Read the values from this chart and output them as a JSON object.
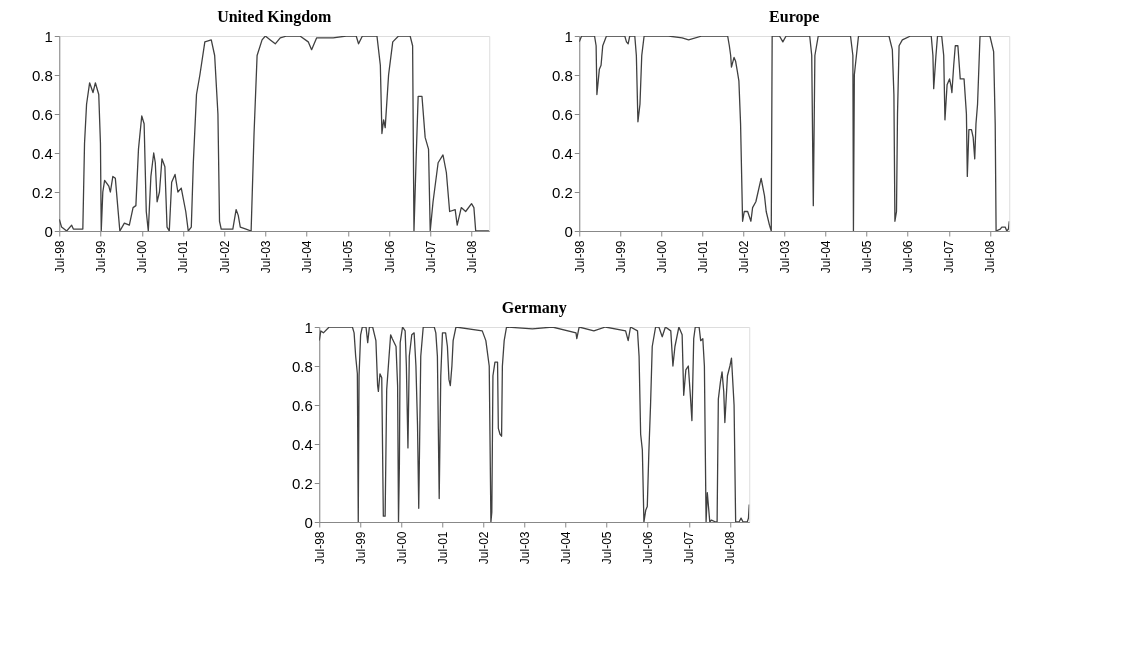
{
  "chart_data": [
    {
      "type": "line",
      "title": "United Kingdom",
      "xlim": [
        "1998-07-01",
        "2008-12-05"
      ],
      "ylim": [
        0,
        1
      ],
      "xticks": [
        {
          "value": "1998-07-01",
          "label": "Jul-98"
        },
        {
          "value": "1999-07-01",
          "label": "Jul-99"
        },
        {
          "value": "2000-07-01",
          "label": "Jul-00"
        },
        {
          "value": "2001-07-01",
          "label": "Jul-01"
        },
        {
          "value": "2002-07-01",
          "label": "Jul-02"
        },
        {
          "value": "2003-07-01",
          "label": "Jul-03"
        },
        {
          "value": "2004-07-01",
          "label": "Jul-04"
        },
        {
          "value": "2005-07-01",
          "label": "Jul-05"
        },
        {
          "value": "2006-07-01",
          "label": "Jul-06"
        },
        {
          "value": "2007-07-01",
          "label": "Jul-07"
        },
        {
          "value": "2008-07-01",
          "label": "Jul-08"
        }
      ],
      "yticks": [
        0,
        0.2,
        0.4,
        0.6,
        0.8,
        1
      ],
      "grid": false,
      "series": [
        {
          "color": "#404040",
          "x": [
            "1998-07-01",
            "1998-07-22",
            "1998-09-05",
            "1998-10-19",
            "1998-11-03",
            "1999-01-26",
            "1999-02-10",
            "1999-02-28",
            "1999-03-27",
            "1999-04-26",
            "1999-05-17",
            "1999-06-16",
            "1999-07-01",
            "1999-07-08",
            "1999-07-22",
            "1999-08-07",
            "1999-09-13",
            "1999-09-27",
            "1999-10-19",
            "1999-11-10",
            "1999-12-02",
            "1999-12-20",
            "2000-01-29",
            "2000-03-13",
            "2000-04-15",
            "2000-05-10",
            "2000-06-02",
            "2000-07-01",
            "2000-07-22",
            "2000-08-10",
            "2000-08-28",
            "2000-09-20",
            "2000-10-15",
            "2000-10-29",
            "2000-11-14",
            "2000-12-05",
            "2000-12-27",
            "2001-01-22",
            "2001-02-10",
            "2001-03-02",
            "2001-03-23",
            "2001-04-22",
            "2001-05-17",
            "2001-06-16",
            "2001-07-26",
            "2001-08-17",
            "2001-09-13",
            "2001-10-01",
            "2001-10-29",
            "2001-11-28",
            "2002-01-11",
            "2002-03-09",
            "2002-04-08",
            "2002-05-07",
            "2002-05-21",
            "2002-06-05",
            "2002-09-16",
            "2002-10-15",
            "2002-11-03",
            "2002-11-21",
            "2003-01-11",
            "2003-02-25",
            "2003-03-23",
            "2003-04-19",
            "2003-06-02",
            "2003-07-01",
            "2003-08-14",
            "2003-09-27",
            "2003-11-10",
            "2004-01-08",
            "2004-05-03",
            "2004-07-15",
            "2004-08-14",
            "2004-09-27",
            "2005-02-21",
            "2005-06-16",
            "2005-09-13",
            "2005-10-04",
            "2005-11-07",
            "2006-03-16",
            "2006-04-15",
            "2006-04-29",
            "2006-05-14",
            "2006-05-28",
            "2006-06-27",
            "2006-08-03",
            "2006-09-23",
            "2007-01-04",
            "2007-01-26",
            "2007-02-07",
            "2007-02-25",
            "2007-03-16",
            "2007-04-19",
            "2007-05-17",
            "2007-06-16",
            "2007-07-01",
            "2007-07-26",
            "2007-09-09",
            "2007-10-22",
            "2007-11-21",
            "2007-12-20",
            "2008-02-07",
            "2008-02-25",
            "2008-04-01",
            "2008-05-10",
            "2008-07-01",
            "2008-07-22",
            "2008-08-07",
            "2008-12-02"
          ],
          "values": [
            0.06,
            0.02,
            0,
            0.03,
            0.01,
            0.01,
            0.45,
            0.65,
            0.76,
            0.71,
            0.76,
            0.7,
            0.45,
            0,
            0.2,
            0.26,
            0.23,
            0.2,
            0.28,
            0.27,
            0.12,
            0,
            0.04,
            0.03,
            0.12,
            0.13,
            0.42,
            0.59,
            0.55,
            0.1,
            0,
            0.28,
            0.4,
            0.35,
            0.15,
            0.2,
            0.37,
            0.33,
            0.02,
            0,
            0.25,
            0.29,
            0.2,
            0.22,
            0.1,
            0,
            0.02,
            0.35,
            0.7,
            0.8,
            0.97,
            0.98,
            0.9,
            0.6,
            0.05,
            0.01,
            0.01,
            0.11,
            0.08,
            0.02,
            0.01,
            0,
            0.5,
            0.9,
            0.98,
            1,
            0.98,
            0.96,
            0.99,
            1,
            1,
            0.97,
            0.93,
            0.99,
            0.99,
            1,
            1,
            0.96,
            1,
            1,
            0.85,
            0.5,
            0.57,
            0.53,
            0.8,
            0.97,
            1,
            1,
            0.95,
            0,
            0.35,
            0.69,
            0.69,
            0.48,
            0.42,
            0,
            0.15,
            0.35,
            0.39,
            0.3,
            0.1,
            0.11,
            0.03,
            0.12,
            0.1,
            0.14,
            0.12,
            0,
            0
          ]
        }
      ]
    },
    {
      "type": "line",
      "title": "Europe",
      "xlim": [
        "1998-07-01",
        "2008-12-20"
      ],
      "ylim": [
        0,
        1
      ],
      "xticks": [
        {
          "value": "1998-07-01",
          "label": "Jul-98"
        },
        {
          "value": "1999-07-01",
          "label": "Jul-99"
        },
        {
          "value": "2000-07-01",
          "label": "Jul-00"
        },
        {
          "value": "2001-07-01",
          "label": "Jul-01"
        },
        {
          "value": "2002-07-01",
          "label": "Jul-02"
        },
        {
          "value": "2003-07-01",
          "label": "Jul-03"
        },
        {
          "value": "2004-07-01",
          "label": "Jul-04"
        },
        {
          "value": "2005-07-01",
          "label": "Jul-05"
        },
        {
          "value": "2006-07-01",
          "label": "Jul-06"
        },
        {
          "value": "2007-07-01",
          "label": "Jul-07"
        },
        {
          "value": "2008-07-01",
          "label": "Jul-08"
        }
      ],
      "yticks": [
        0,
        0.2,
        0.4,
        0.6,
        0.8,
        1
      ],
      "grid": false,
      "series": [
        {
          "color": "#404040",
          "x": [
            "1998-07-01",
            "1998-07-22",
            "1998-11-14",
            "1998-11-28",
            "1998-12-05",
            "1998-12-27",
            "1999-01-11",
            "1999-01-26",
            "1999-02-28",
            "1999-08-10",
            "1999-08-25",
            "1999-09-09",
            "1999-09-23",
            "1999-11-07",
            "1999-11-21",
            "1999-12-05",
            "1999-12-23",
            "2000-01-08",
            "2000-01-29",
            "2000-09-02",
            "2001-01-01",
            "2001-02-28",
            "2001-06-27",
            "2002-02-10",
            "2002-02-25",
            "2002-03-09",
            "2002-03-16",
            "2002-04-08",
            "2002-04-22",
            "2002-05-07",
            "2002-05-21",
            "2002-06-05",
            "2002-06-23",
            "2002-07-08",
            "2002-08-07",
            "2002-09-05",
            "2002-09-20",
            "2002-10-19",
            "2002-12-05",
            "2003-01-04",
            "2003-01-19",
            "2003-02-17",
            "2003-03-05",
            "2003-03-13",
            "2003-03-16",
            "2003-05-17",
            "2003-06-16",
            "2003-07-15",
            "2004-02-10",
            "2004-02-28",
            "2004-03-13",
            "2004-03-27",
            "2004-04-26",
            "2005-02-07",
            "2005-02-28",
            "2005-03-05",
            "2005-03-13",
            "2005-04-19",
            "2006-01-15",
            "2006-02-14",
            "2006-02-28",
            "2006-03-09",
            "2006-03-23",
            "2006-04-01",
            "2006-04-15",
            "2006-05-14",
            "2006-07-26",
            "2007-01-26",
            "2007-02-10",
            "2007-02-17",
            "2007-03-09",
            "2007-03-23",
            "2007-04-29",
            "2007-05-17",
            "2007-05-28",
            "2007-06-16",
            "2007-07-08",
            "2007-07-22",
            "2007-07-29",
            "2007-08-14",
            "2007-08-28",
            "2007-09-20",
            "2007-10-11",
            "2007-11-14",
            "2007-12-05",
            "2007-12-13",
            "2007-12-27",
            "2008-01-19",
            "2008-02-03",
            "2008-02-17",
            "2008-02-28",
            "2008-03-13",
            "2008-04-04",
            "2008-07-01",
            "2008-08-03",
            "2008-08-17",
            "2008-08-25",
            "2008-10-01",
            "2008-10-15",
            "2008-11-14",
            "2008-11-28",
            "2008-12-13",
            "2008-12-20"
          ],
          "values": [
            0.97,
            1,
            1,
            0.95,
            0.7,
            0.83,
            0.85,
            0.95,
            1,
            1,
            0.97,
            0.96,
            1,
            1,
            0.9,
            0.56,
            0.65,
            0.9,
            1,
            1,
            0.99,
            0.98,
            1,
            1,
            0.95,
            0.9,
            0.84,
            0.89,
            0.87,
            0.82,
            0.77,
            0.55,
            0.05,
            0.1,
            0.1,
            0.05,
            0.12,
            0.15,
            0.27,
            0.18,
            0.1,
            0.03,
            0,
            1,
            1,
            1,
            0.97,
            1,
            1,
            0.9,
            0.13,
            0.9,
            1,
            1,
            0.9,
            0,
            0.8,
            1,
            1,
            0.93,
            0.7,
            0.05,
            0.1,
            0.6,
            0.95,
            0.98,
            1,
            1,
            0.9,
            0.73,
            0.9,
            1,
            1,
            0.9,
            0.57,
            0.75,
            0.78,
            0.74,
            0.71,
            0.85,
            0.95,
            0.95,
            0.78,
            0.78,
            0.6,
            0.28,
            0.52,
            0.52,
            0.48,
            0.37,
            0.55,
            0.65,
            1,
            1,
            0.92,
            0.55,
            0,
            0.01,
            0.02,
            0.02,
            0,
            0.01,
            0.05
          ]
        }
      ]
    },
    {
      "type": "line",
      "title": "Germany",
      "xlim": [
        "1998-07-01",
        "2008-12-20"
      ],
      "ylim": [
        0,
        1
      ],
      "xticks": [
        {
          "value": "1998-07-01",
          "label": "Jul-98"
        },
        {
          "value": "1999-07-01",
          "label": "Jul-99"
        },
        {
          "value": "2000-07-01",
          "label": "Jul-00"
        },
        {
          "value": "2001-07-01",
          "label": "Jul-01"
        },
        {
          "value": "2002-07-01",
          "label": "Jul-02"
        },
        {
          "value": "2003-07-01",
          "label": "Jul-03"
        },
        {
          "value": "2004-07-01",
          "label": "Jul-04"
        },
        {
          "value": "2005-07-01",
          "label": "Jul-05"
        },
        {
          "value": "2006-07-01",
          "label": "Jul-06"
        },
        {
          "value": "2007-07-01",
          "label": "Jul-07"
        },
        {
          "value": "2008-07-01",
          "label": "Jul-08"
        }
      ],
      "yticks": [
        0,
        0.2,
        0.4,
        0.6,
        0.8,
        1
      ],
      "grid": false,
      "series": [
        {
          "color": "#404040",
          "x": [
            "1998-07-01",
            "1998-07-15",
            "1998-08-07",
            "1998-09-27",
            "1999-04-22",
            "1999-05-07",
            "1999-05-21",
            "1999-06-05",
            "1999-06-13",
            "1999-06-20",
            "1999-07-04",
            "1999-07-19",
            "1999-08-21",
            "1999-09-05",
            "1999-09-20",
            "1999-10-19",
            "1999-11-17",
            "1999-12-02",
            "1999-12-09",
            "1999-12-23",
            "2000-01-08",
            "2000-01-22",
            "2000-02-07",
            "2000-02-21",
            "2000-03-13",
            "2000-03-27",
            "2000-04-11",
            "2000-05-14",
            "2000-05-28",
            "2000-06-05",
            "2000-06-13",
            "2000-06-20",
            "2000-07-11",
            "2000-08-03",
            "2000-08-14",
            "2000-08-28",
            "2000-09-09",
            "2000-10-01",
            "2000-10-22",
            "2000-11-07",
            "2000-11-21",
            "2000-12-02",
            "2000-12-20",
            "2001-01-11",
            "2001-04-19",
            "2001-05-03",
            "2001-05-17",
            "2001-06-02",
            "2001-06-16",
            "2001-07-01",
            "2001-07-29",
            "2001-08-14",
            "2001-08-28",
            "2001-09-09",
            "2001-09-23",
            "2001-10-04",
            "2001-10-29",
            "2002-06-20",
            "2002-07-22",
            "2002-08-21",
            "2002-09-05",
            "2002-09-13",
            "2002-09-23",
            "2002-10-11",
            "2002-11-03",
            "2002-11-10",
            "2002-11-25",
            "2002-12-09",
            "2002-12-16",
            "2003-01-01",
            "2003-01-22",
            "2003-09-09",
            "2004-03-05",
            "2004-10-01",
            "2004-10-08",
            "2004-10-29",
            "2005-03-09",
            "2005-06-20",
            "2005-12-16",
            "2006-01-08",
            "2006-01-29",
            "2006-04-01",
            "2006-04-15",
            "2006-04-29",
            "2006-05-14",
            "2006-05-28",
            "2006-06-13",
            "2006-06-27",
            "2006-07-11",
            "2006-07-26",
            "2006-08-10",
            "2006-09-09",
            "2006-10-08",
            "2006-11-07",
            "2006-12-05",
            "2007-01-22",
            "2007-02-10",
            "2007-02-28",
            "2007-04-04",
            "2007-05-03",
            "2007-05-17",
            "2007-06-05",
            "2007-06-27",
            "2007-07-15",
            "2007-07-29",
            "2007-08-14",
            "2007-08-28",
            "2007-10-01",
            "2007-10-15",
            "2007-11-03",
            "2007-11-17",
            "2007-12-02",
            "2007-12-13",
            "2008-01-04",
            "2008-01-19",
            "2008-02-25",
            "2008-03-09",
            "2008-03-20",
            "2008-04-08",
            "2008-04-22",
            "2008-05-07",
            "2008-05-17",
            "2008-06-09",
            "2008-07-01",
            "2008-07-15",
            "2008-08-07",
            "2008-08-21",
            "2008-09-20",
            "2008-10-08",
            "2008-10-26",
            "2008-12-02",
            "2008-12-13",
            "2008-12-20"
          ],
          "values": [
            0.93,
            0.98,
            0.97,
            1,
            1,
            0.97,
            0.85,
            0.76,
            0,
            0.75,
            0.96,
            1,
            1,
            0.92,
            1,
            1,
            0.93,
            0.7,
            0.67,
            0.76,
            0.74,
            0.03,
            0.03,
            0.68,
            0.85,
            0.96,
            0.94,
            0.9,
            0.7,
            0,
            0.3,
            0.92,
            1,
            0.98,
            0.8,
            0.38,
            0.85,
            0.96,
            0.97,
            0.8,
            0.5,
            0.07,
            0.85,
            1,
            1,
            0.97,
            0.85,
            0.12,
            0.75,
            0.97,
            0.97,
            0.9,
            0.73,
            0.7,
            0.8,
            0.93,
            1,
            0.98,
            0.93,
            0.8,
            0,
            0.05,
            0.75,
            0.82,
            0.82,
            0.48,
            0.45,
            0.44,
            0.8,
            0.93,
            1,
            0.99,
            1,
            0.97,
            0.94,
            1,
            0.98,
            1,
            0.98,
            0.93,
            1,
            0.98,
            0.85,
            0.45,
            0.37,
            0,
            0.06,
            0.08,
            0.36,
            0.6,
            0.9,
            1,
            1,
            0.95,
            1,
            0.98,
            0.8,
            0.9,
            1,
            0.96,
            0.65,
            0.78,
            0.8,
            0.65,
            0.52,
            0.94,
            1,
            1,
            0.93,
            0.94,
            0.8,
            0,
            0.15,
            0,
            0.01,
            0,
            0,
            0.63,
            0.72,
            0.77,
            0.67,
            0.51,
            0.75,
            0.8,
            0.84,
            0.6,
            0,
            0,
            0.02,
            0,
            0,
            0.02,
            0.09
          ]
        }
      ]
    }
  ]
}
